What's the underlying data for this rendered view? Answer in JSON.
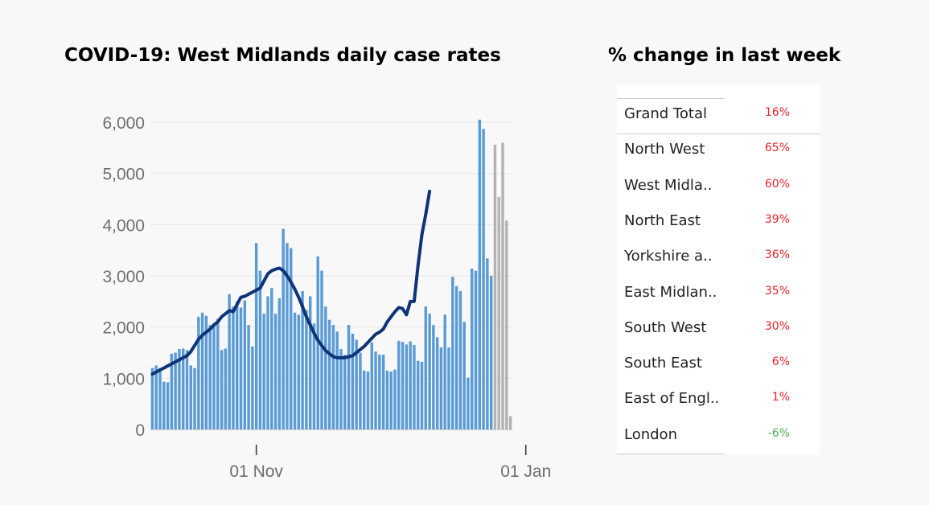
{
  "chart_title": "COVID-19: West Midlands daily case rates",
  "table_title": "% change in last week",
  "colors": {
    "bar": "#5b9bd5",
    "bar_partial": "#b3b3b3",
    "avg_line": "#0e3478",
    "positive": "#e8202a",
    "negative": "#4caf50",
    "grid": "#e6e6e6"
  },
  "chart_data": {
    "type": "bar",
    "title": "COVID-19: West Midlands daily case rates",
    "xlabel": "",
    "ylabel": "",
    "ylim": [
      0,
      6000
    ],
    "grid": true,
    "y_ticks": [
      "0",
      "1,000",
      "2,000",
      "3,000",
      "4,000",
      "5,000",
      "6,000"
    ],
    "x_ticks": [
      "01 Nov",
      "01 Jan"
    ],
    "x_tick_positions": [
      27,
      97
    ],
    "series": [
      {
        "type": "bar",
        "values": [
          1200,
          1250,
          1200,
          930,
          920,
          1480,
          1500,
          1570,
          1580,
          1550,
          1250,
          1200,
          2200,
          2280,
          2220,
          2040,
          2080,
          2160,
          1550,
          1580,
          2640,
          2400,
          2500,
          2380,
          2520,
          2040,
          1620,
          3640,
          3100,
          2260,
          2600,
          2760,
          2260,
          2560,
          3920,
          3640,
          3540,
          2280,
          2240,
          2700,
          2330,
          2600,
          2070,
          3380,
          3100,
          2400,
          2140,
          2040,
          1910,
          1570,
          1460,
          2040,
          1870,
          1750,
          1500,
          1150,
          1130,
          1700,
          1520,
          1460,
          1460,
          1150,
          1130,
          1170,
          1730,
          1710,
          1660,
          1720,
          1650,
          1340,
          1320,
          2400,
          2260,
          2040,
          1800,
          1600,
          2240,
          1600,
          2980,
          2800,
          2700,
          2100,
          1010,
          3140,
          3100,
          6050,
          5870,
          3340,
          3000,
          5560,
          4540,
          5600,
          4080,
          260
        ],
        "partial_from_index": 89
      },
      {
        "type": "line",
        "values": [
          1080,
          1120,
          1160,
          1200,
          1240,
          1280,
          1320,
          1360,
          1400,
          1440,
          1520,
          1640,
          1760,
          1840,
          1900,
          1960,
          2040,
          2100,
          2200,
          2260,
          2320,
          2300,
          2440,
          2580,
          2600,
          2640,
          2680,
          2720,
          2760,
          2900,
          3040,
          3100,
          3130,
          3150,
          3100,
          3000,
          2880,
          2740,
          2580,
          2400,
          2200,
          2040,
          1880,
          1740,
          1640,
          1540,
          1480,
          1420,
          1400,
          1400,
          1400,
          1420,
          1440,
          1500,
          1560,
          1620,
          1700,
          1780,
          1860,
          1900,
          1960,
          2100,
          2200,
          2300,
          2380,
          2360,
          2240,
          2500,
          2500,
          3200,
          3800,
          4200,
          4650
        ]
      }
    ]
  },
  "table": {
    "rows": [
      {
        "label": "Grand Total",
        "value": "16%",
        "sign": "positive"
      },
      {
        "label": "North West",
        "value": "65%",
        "sign": "positive"
      },
      {
        "label": "West Midla..",
        "value": "60%",
        "sign": "positive"
      },
      {
        "label": "North East",
        "value": "39%",
        "sign": "positive"
      },
      {
        "label": "Yorkshire a..",
        "value": "36%",
        "sign": "positive"
      },
      {
        "label": "East Midlan..",
        "value": "35%",
        "sign": "positive"
      },
      {
        "label": "South West",
        "value": "30%",
        "sign": "positive"
      },
      {
        "label": "South East",
        "value": "6%",
        "sign": "positive"
      },
      {
        "label": "East of Engl..",
        "value": "1%",
        "sign": "positive"
      },
      {
        "label": "London",
        "value": "-6%",
        "sign": "negative"
      }
    ]
  }
}
